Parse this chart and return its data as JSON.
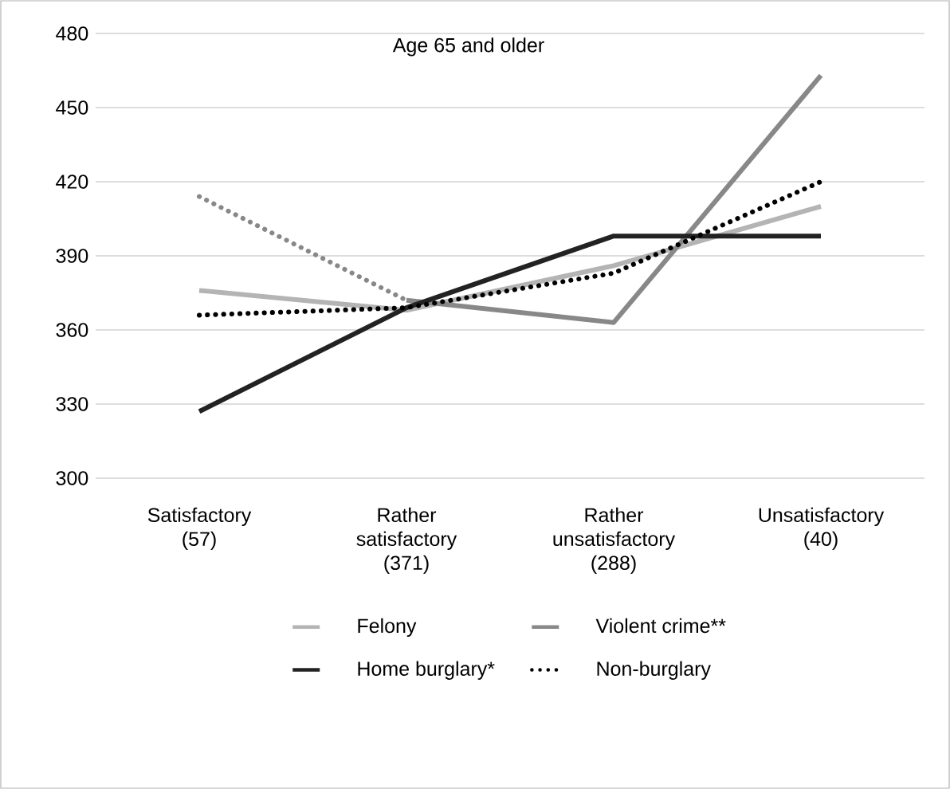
{
  "chart_data": {
    "type": "line",
    "title": "Age 65 and older",
    "categories": [
      "Satisfactory (57)",
      "Rather satisfactory (371)",
      "Rather unsatisfactory (288)",
      "Unsatisfactory (40)"
    ],
    "series": [
      {
        "name": "Felony",
        "color": "#b4b4b4",
        "values": [
          376,
          368,
          386,
          410
        ]
      },
      {
        "name": "Violent crime**",
        "color": "#888888",
        "values": [
          null,
          372,
          363,
          463
        ]
      },
      {
        "name": "Home burglary*",
        "color": "#222222",
        "values": [
          327,
          369,
          398,
          398
        ]
      },
      {
        "name": "Non-burglary",
        "color": "#000000",
        "line_style": "dotted",
        "values": [
          366,
          369,
          383,
          420
        ]
      },
      {
        "color": "#888888",
        "line_style": "dotted",
        "values": [
          414,
          372,
          null,
          null
        ]
      }
    ],
    "ylim": [
      300,
      480
    ],
    "yticks": [
      300,
      330,
      360,
      390,
      420,
      450,
      480
    ],
    "grid": "y",
    "legend": "bottom",
    "marker": "none",
    "line_style": "solid"
  }
}
